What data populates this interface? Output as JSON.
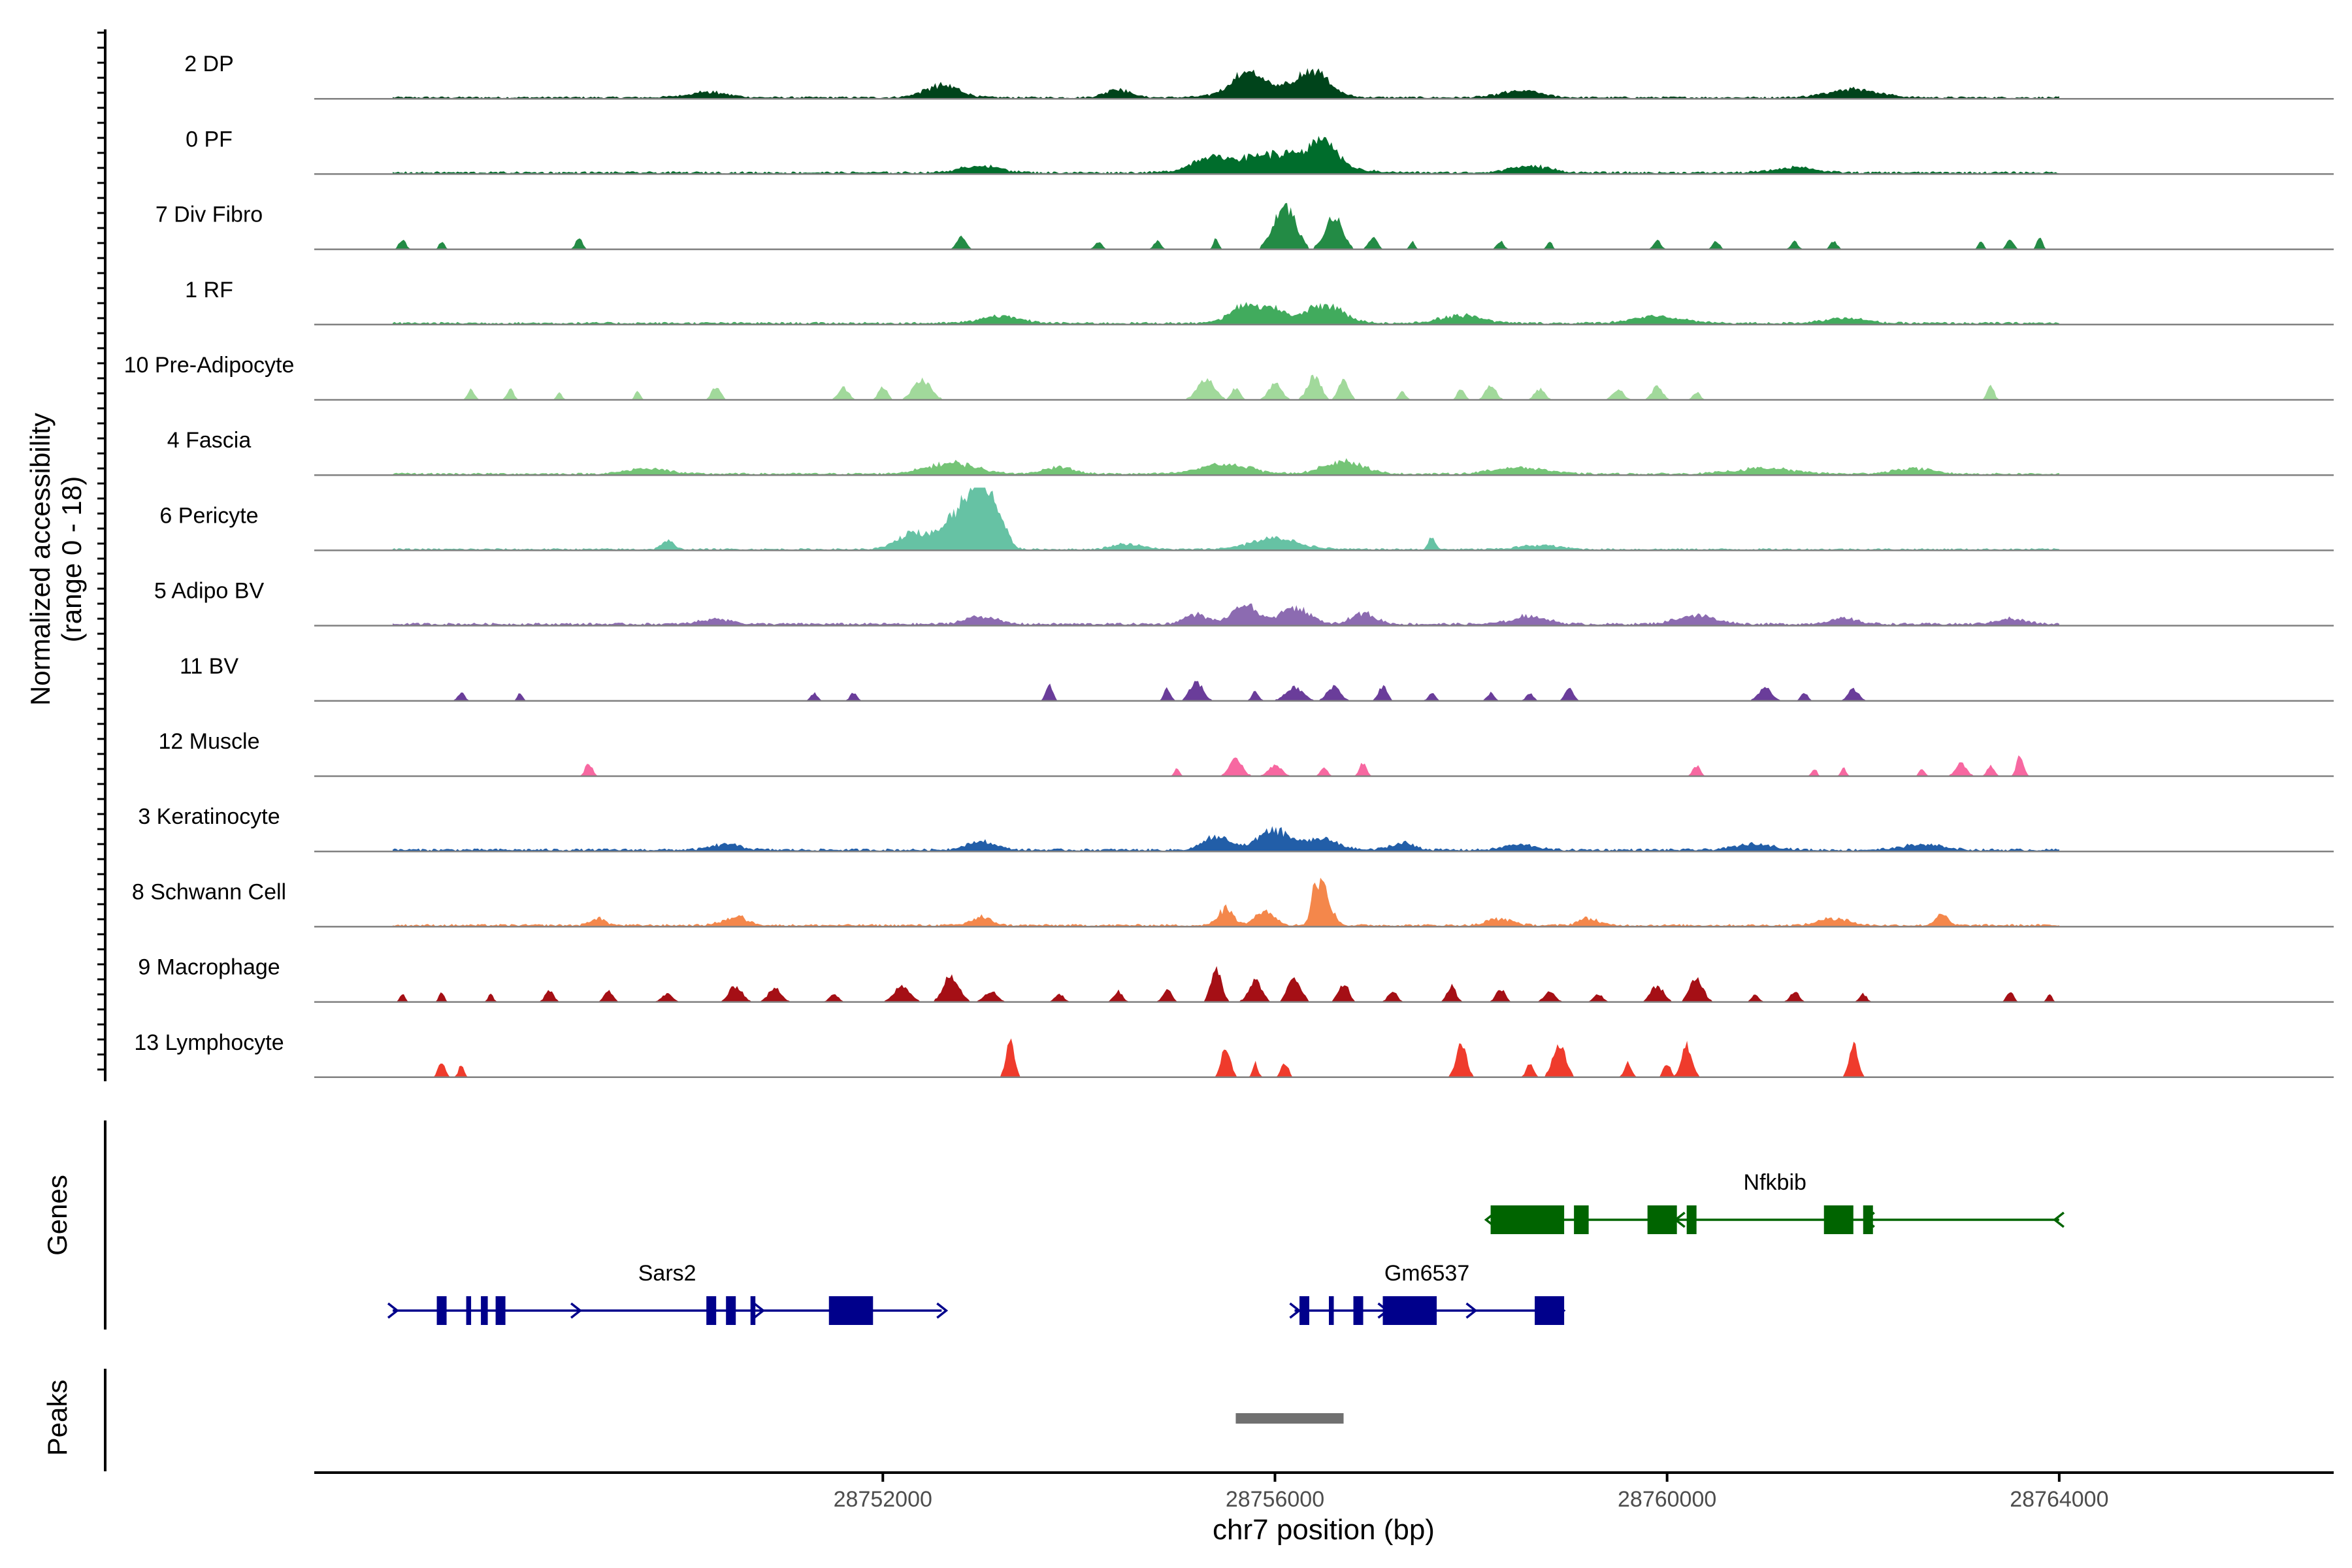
{
  "chart_data": {
    "type": "area",
    "title": "",
    "xlabel": "chr7 position (bp)",
    "ylabel": "Normalized accessibility",
    "ylabel_sub": "(range 0 - 18)",
    "ylim": [
      0,
      18
    ],
    "xlim": [
      28746200,
      28766800
    ],
    "x_ticks": [
      28752000,
      28756000,
      28760000,
      28764000
    ],
    "x_tick_labels": [
      "28752000",
      "28756000",
      "28760000",
      "28764000"
    ],
    "track_start": 28747000,
    "track_end": 28764000,
    "series": [
      {
        "name": "2 DP",
        "color": "#00441b",
        "profile": "broad",
        "intensity": 0.9,
        "peaks": [
          [
            28752600,
            350,
            9
          ],
          [
            28754400,
            250,
            6
          ],
          [
            28756000,
            700,
            8
          ],
          [
            28756400,
            300,
            16
          ],
          [
            28755700,
            300,
            13
          ],
          [
            28750200,
            400,
            4
          ],
          [
            28758500,
            400,
            5
          ],
          [
            28761900,
            500,
            6
          ]
        ]
      },
      {
        "name": "0 PF",
        "color": "#006d2c",
        "profile": "broad",
        "intensity": 1.0,
        "peaks": [
          [
            28756000,
            900,
            14
          ],
          [
            28756500,
            250,
            18
          ],
          [
            28755300,
            300,
            7
          ],
          [
            28753000,
            400,
            5
          ],
          [
            28758600,
            400,
            5
          ],
          [
            28761300,
            400,
            4
          ]
        ]
      },
      {
        "name": "7 Div Fibro",
        "color": "#238b45",
        "profile": "sparse",
        "intensity": 0.0,
        "peaks": [
          [
            28747100,
            80,
            7
          ],
          [
            28747500,
            60,
            6
          ],
          [
            28748900,
            80,
            8
          ],
          [
            28752800,
            100,
            10
          ],
          [
            28754200,
            80,
            6
          ],
          [
            28754800,
            80,
            6
          ],
          [
            28755400,
            60,
            8
          ],
          [
            28756100,
            250,
            32
          ],
          [
            28756600,
            200,
            24
          ],
          [
            28757000,
            100,
            9
          ],
          [
            28757400,
            60,
            6
          ],
          [
            28758300,
            80,
            6
          ],
          [
            28758800,
            60,
            6
          ],
          [
            28759900,
            80,
            7
          ],
          [
            28760500,
            80,
            6
          ],
          [
            28761300,
            80,
            6
          ],
          [
            28761700,
            80,
            6
          ],
          [
            28763200,
            60,
            6
          ],
          [
            28763500,
            80,
            8
          ],
          [
            28763800,
            60,
            10
          ]
        ]
      },
      {
        "name": "1 RF",
        "color": "#41ab5d",
        "profile": "broad",
        "intensity": 1.0,
        "peaks": [
          [
            28755700,
            300,
            14
          ],
          [
            28756500,
            400,
            13
          ],
          [
            28756000,
            200,
            9
          ],
          [
            28753200,
            400,
            5
          ],
          [
            28757900,
            400,
            6
          ],
          [
            28759900,
            500,
            5
          ],
          [
            28761800,
            400,
            4
          ]
        ]
      },
      {
        "name": "10 Pre-Adipocyte",
        "color": "#a1d99b",
        "profile": "sparse",
        "intensity": 0.0,
        "peaks": [
          [
            28747800,
            80,
            8
          ],
          [
            28748200,
            80,
            8
          ],
          [
            28748700,
            60,
            6
          ],
          [
            28749500,
            60,
            7
          ],
          [
            28750300,
            100,
            10
          ],
          [
            28751600,
            120,
            9
          ],
          [
            28752000,
            100,
            10
          ],
          [
            28752400,
            200,
            15
          ],
          [
            28755300,
            200,
            15
          ],
          [
            28755600,
            100,
            9
          ],
          [
            28756000,
            150,
            12
          ],
          [
            28756400,
            150,
            18
          ],
          [
            28756700,
            120,
            15
          ],
          [
            28757300,
            80,
            6
          ],
          [
            28757900,
            80,
            9
          ],
          [
            28758200,
            120,
            11
          ],
          [
            28758700,
            120,
            8
          ],
          [
            28759500,
            120,
            8
          ],
          [
            28759900,
            120,
            10
          ],
          [
            28760300,
            80,
            6
          ],
          [
            28763300,
            80,
            10
          ]
        ]
      },
      {
        "name": "4 Fascia",
        "color": "#74c476",
        "profile": "broad",
        "intensity": 0.9,
        "peaks": [
          [
            28752700,
            500,
            8
          ],
          [
            28755500,
            500,
            7
          ],
          [
            28756700,
            400,
            9
          ],
          [
            28753800,
            300,
            5
          ],
          [
            28749600,
            400,
            4
          ],
          [
            28758500,
            500,
            5
          ],
          [
            28761000,
            600,
            4
          ],
          [
            28762500,
            400,
            4
          ]
        ]
      },
      {
        "name": "6 Pericyte",
        "color": "#66c2a4",
        "profile": "broad",
        "intensity": 0.8,
        "peaks": [
          [
            28752800,
            350,
            28
          ],
          [
            28753000,
            200,
            42
          ],
          [
            28753200,
            150,
            20
          ],
          [
            28752300,
            300,
            12
          ],
          [
            28756000,
            500,
            8
          ],
          [
            28757600,
            60,
            10
          ],
          [
            28749800,
            120,
            6
          ],
          [
            28754500,
            300,
            4
          ],
          [
            28758700,
            400,
            3
          ]
        ]
      },
      {
        "name": "5 Adipo BV",
        "color": "#8c6bb1",
        "profile": "broad",
        "intensity": 1.1,
        "peaks": [
          [
            28755700,
            250,
            14
          ],
          [
            28756200,
            300,
            12
          ],
          [
            28755200,
            250,
            7
          ],
          [
            28756900,
            250,
            8
          ],
          [
            28753000,
            300,
            6
          ],
          [
            28758600,
            350,
            6
          ],
          [
            28760300,
            400,
            6
          ],
          [
            28761800,
            300,
            4
          ],
          [
            28763500,
            300,
            4
          ],
          [
            28750300,
            300,
            4
          ]
        ]
      },
      {
        "name": "11 BV",
        "color": "#6a3d9a",
        "profile": "sparse",
        "intensity": 0.0,
        "peaks": [
          [
            28747700,
            80,
            6
          ],
          [
            28748300,
            60,
            6
          ],
          [
            28751300,
            80,
            6
          ],
          [
            28751700,
            80,
            6
          ],
          [
            28753700,
            80,
            12
          ],
          [
            28754900,
            80,
            9
          ],
          [
            28755200,
            150,
            14
          ],
          [
            28755800,
            80,
            7
          ],
          [
            28756200,
            200,
            10
          ],
          [
            28756600,
            150,
            11
          ],
          [
            28757100,
            100,
            11
          ],
          [
            28757600,
            80,
            6
          ],
          [
            28758200,
            80,
            6
          ],
          [
            28758600,
            80,
            6
          ],
          [
            28759000,
            100,
            9
          ],
          [
            28761000,
            150,
            10
          ],
          [
            28761400,
            80,
            6
          ],
          [
            28761900,
            120,
            9
          ]
        ]
      },
      {
        "name": "12 Muscle",
        "color": "#f768a1",
        "profile": "sparse",
        "intensity": 0.0,
        "peaks": [
          [
            28749000,
            80,
            10
          ],
          [
            28755000,
            60,
            6
          ],
          [
            28755600,
            150,
            12
          ],
          [
            28756000,
            150,
            8
          ],
          [
            28756500,
            80,
            6
          ],
          [
            28756900,
            80,
            10
          ],
          [
            28760300,
            80,
            8
          ],
          [
            28761500,
            60,
            6
          ],
          [
            28761800,
            60,
            6
          ],
          [
            28762600,
            60,
            6
          ],
          [
            28763000,
            120,
            10
          ],
          [
            28763300,
            80,
            8
          ],
          [
            28763600,
            80,
            16
          ]
        ]
      },
      {
        "name": "3 Keratinocyte",
        "color": "#225ea8",
        "profile": "broad",
        "intensity": 1.1,
        "peaks": [
          [
            28756000,
            350,
            14
          ],
          [
            28755400,
            250,
            10
          ],
          [
            28756500,
            300,
            8
          ],
          [
            28757300,
            250,
            5
          ],
          [
            28753000,
            300,
            6
          ],
          [
            28750400,
            300,
            4
          ],
          [
            28758500,
            300,
            4
          ],
          [
            28760900,
            400,
            4
          ],
          [
            28762600,
            400,
            4
          ]
        ]
      },
      {
        "name": "8 Schwann Cell",
        "color": "#f4874b",
        "profile": "broad",
        "intensity": 1.0,
        "peaks": [
          [
            28756500,
            150,
            26
          ],
          [
            28756400,
            80,
            18
          ],
          [
            28755500,
            150,
            12
          ],
          [
            28755900,
            200,
            10
          ],
          [
            28750500,
            250,
            6
          ],
          [
            28749100,
            150,
            5
          ],
          [
            28753000,
            200,
            6
          ],
          [
            28758300,
            250,
            5
          ],
          [
            28759200,
            200,
            5
          ],
          [
            28761700,
            300,
            5
          ],
          [
            28762800,
            120,
            8
          ]
        ]
      },
      {
        "name": "9 Macrophage",
        "color": "#a50f15",
        "profile": "dense",
        "intensity": 0.0,
        "peaks": [
          [
            28747100,
            60,
            6
          ],
          [
            28747500,
            60,
            7
          ],
          [
            28748000,
            60,
            6
          ],
          [
            28748600,
            100,
            8
          ],
          [
            28749200,
            100,
            9
          ],
          [
            28749800,
            120,
            6
          ],
          [
            28750500,
            150,
            12
          ],
          [
            28750900,
            150,
            10
          ],
          [
            28751500,
            100,
            6
          ],
          [
            28752200,
            180,
            12
          ],
          [
            28752700,
            180,
            20
          ],
          [
            28753100,
            150,
            8
          ],
          [
            28753800,
            100,
            6
          ],
          [
            28754400,
            100,
            8
          ],
          [
            28754900,
            100,
            9
          ],
          [
            28755400,
            120,
            26
          ],
          [
            28755800,
            150,
            16
          ],
          [
            28756200,
            150,
            18
          ],
          [
            28756700,
            120,
            14
          ],
          [
            28757200,
            100,
            8
          ],
          [
            28757800,
            100,
            12
          ],
          [
            28758300,
            100,
            10
          ],
          [
            28758800,
            120,
            8
          ],
          [
            28759300,
            100,
            6
          ],
          [
            28759900,
            150,
            12
          ],
          [
            28760300,
            150,
            18
          ],
          [
            28760900,
            80,
            6
          ],
          [
            28761300,
            100,
            8
          ],
          [
            28762000,
            80,
            6
          ],
          [
            28763500,
            80,
            8
          ],
          [
            28763900,
            60,
            6
          ]
        ]
      },
      {
        "name": "13 Lymphocyte",
        "color": "#ef3b2c",
        "profile": "sparse",
        "intensity": 0.0,
        "peaks": [
          [
            28747500,
            80,
            12
          ],
          [
            28747700,
            60,
            10
          ],
          [
            28753300,
            100,
            26
          ],
          [
            28755500,
            100,
            24
          ],
          [
            28755800,
            60,
            11
          ],
          [
            28756100,
            80,
            11
          ],
          [
            28757900,
            120,
            24
          ],
          [
            28758600,
            80,
            11
          ],
          [
            28758900,
            150,
            24
          ],
          [
            28759600,
            80,
            11
          ],
          [
            28760000,
            80,
            11
          ],
          [
            28760200,
            120,
            24
          ],
          [
            28761900,
            100,
            24
          ]
        ]
      }
    ]
  },
  "genes_track": {
    "label": "Genes",
    "genes": [
      {
        "name": "Sars2",
        "strand": "+",
        "color": "#00008b",
        "row": 1,
        "start": 28747000,
        "end": 28752600,
        "exons": [
          [
            28747450,
            28747550
          ],
          [
            28747750,
            28747800
          ],
          [
            28747900,
            28747970
          ],
          [
            28748050,
            28748150
          ],
          [
            28750200,
            28750300
          ],
          [
            28750400,
            28750500
          ],
          [
            28750650,
            28750700
          ],
          [
            28751450,
            28751900
          ]
        ]
      },
      {
        "name": "Gm6537",
        "strand": "+",
        "color": "#00008b",
        "row": 1,
        "start": 28756200,
        "end": 28758900,
        "exons": [
          [
            28756250,
            28756350
          ],
          [
            28756550,
            28756600
          ],
          [
            28756800,
            28756900
          ],
          [
            28757100,
            28757650
          ],
          [
            28758650,
            28758950
          ]
        ]
      },
      {
        "name": "Nfkbib",
        "strand": "-",
        "color": "#006400",
        "row": 0,
        "start": 28758200,
        "end": 28764000,
        "exons": [
          [
            28758200,
            28758950
          ],
          [
            28759050,
            28759200
          ],
          [
            28759800,
            28760100
          ],
          [
            28760200,
            28760300
          ],
          [
            28761600,
            28761900
          ],
          [
            28762000,
            28762100
          ]
        ]
      }
    ]
  },
  "peaks_track": {
    "label": "Peaks",
    "color": "#707070",
    "peaks": [
      [
        28755600,
        28756700
      ]
    ]
  }
}
